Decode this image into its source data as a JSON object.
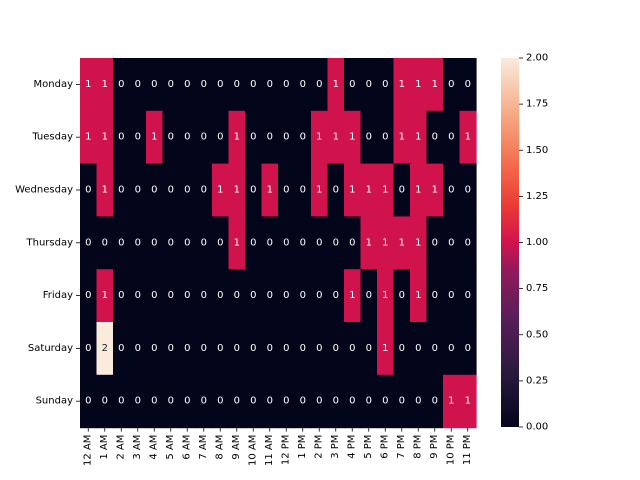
{
  "chart_data": {
    "type": "heatmap",
    "title": "",
    "xlabel": "",
    "ylabel": "",
    "x": [
      "12 AM",
      "1 AM",
      "2 AM",
      "3 AM",
      "4 AM",
      "5 AM",
      "6 AM",
      "7 AM",
      "8 AM",
      "9 AM",
      "10 AM",
      "11 AM",
      "12 PM",
      "1 PM",
      "2 PM",
      "3 PM",
      "4 PM",
      "5 PM",
      "6 PM",
      "7 PM",
      "8 PM",
      "9 PM",
      "10 PM",
      "11 PM"
    ],
    "y": [
      "Monday",
      "Tuesday",
      "Wednesday",
      "Thursday",
      "Friday",
      "Saturday",
      "Sunday"
    ],
    "values": [
      [
        1,
        1,
        0,
        0,
        0,
        0,
        0,
        0,
        0,
        0,
        0,
        0,
        0,
        0,
        0,
        1,
        0,
        0,
        0,
        1,
        1,
        1,
        0,
        0
      ],
      [
        1,
        1,
        0,
        0,
        1,
        0,
        0,
        0,
        0,
        1,
        0,
        0,
        0,
        0,
        1,
        1,
        1,
        0,
        0,
        1,
        1,
        0,
        0,
        1
      ],
      [
        0,
        1,
        0,
        0,
        0,
        0,
        0,
        0,
        1,
        1,
        0,
        1,
        0,
        0,
        1,
        0,
        1,
        1,
        1,
        0,
        1,
        1,
        0,
        0
      ],
      [
        0,
        0,
        0,
        0,
        0,
        0,
        0,
        0,
        0,
        1,
        0,
        0,
        0,
        0,
        0,
        0,
        0,
        1,
        1,
        1,
        1,
        0,
        0,
        0
      ],
      [
        0,
        1,
        0,
        0,
        0,
        0,
        0,
        0,
        0,
        0,
        0,
        0,
        0,
        0,
        0,
        0,
        1,
        0,
        1,
        0,
        1,
        0,
        0,
        0
      ],
      [
        0,
        2,
        0,
        0,
        0,
        0,
        0,
        0,
        0,
        0,
        0,
        0,
        0,
        0,
        0,
        0,
        0,
        0,
        1,
        0,
        0,
        0,
        0,
        0
      ],
      [
        0,
        0,
        0,
        0,
        0,
        0,
        0,
        0,
        0,
        0,
        0,
        0,
        0,
        0,
        0,
        0,
        0,
        0,
        0,
        0,
        0,
        0,
        1,
        1
      ]
    ],
    "colorbar": {
      "range": [
        0,
        2
      ],
      "ticks": [
        "0.00",
        "0.25",
        "0.50",
        "0.75",
        "1.00",
        "1.25",
        "1.50",
        "1.75",
        "2.00"
      ],
      "colors": {
        "0": "#03051a",
        "1": "#d0134c",
        "2": "#faebdd"
      }
    },
    "annotated": true,
    "grid": false,
    "legend": "colorbar-right"
  }
}
